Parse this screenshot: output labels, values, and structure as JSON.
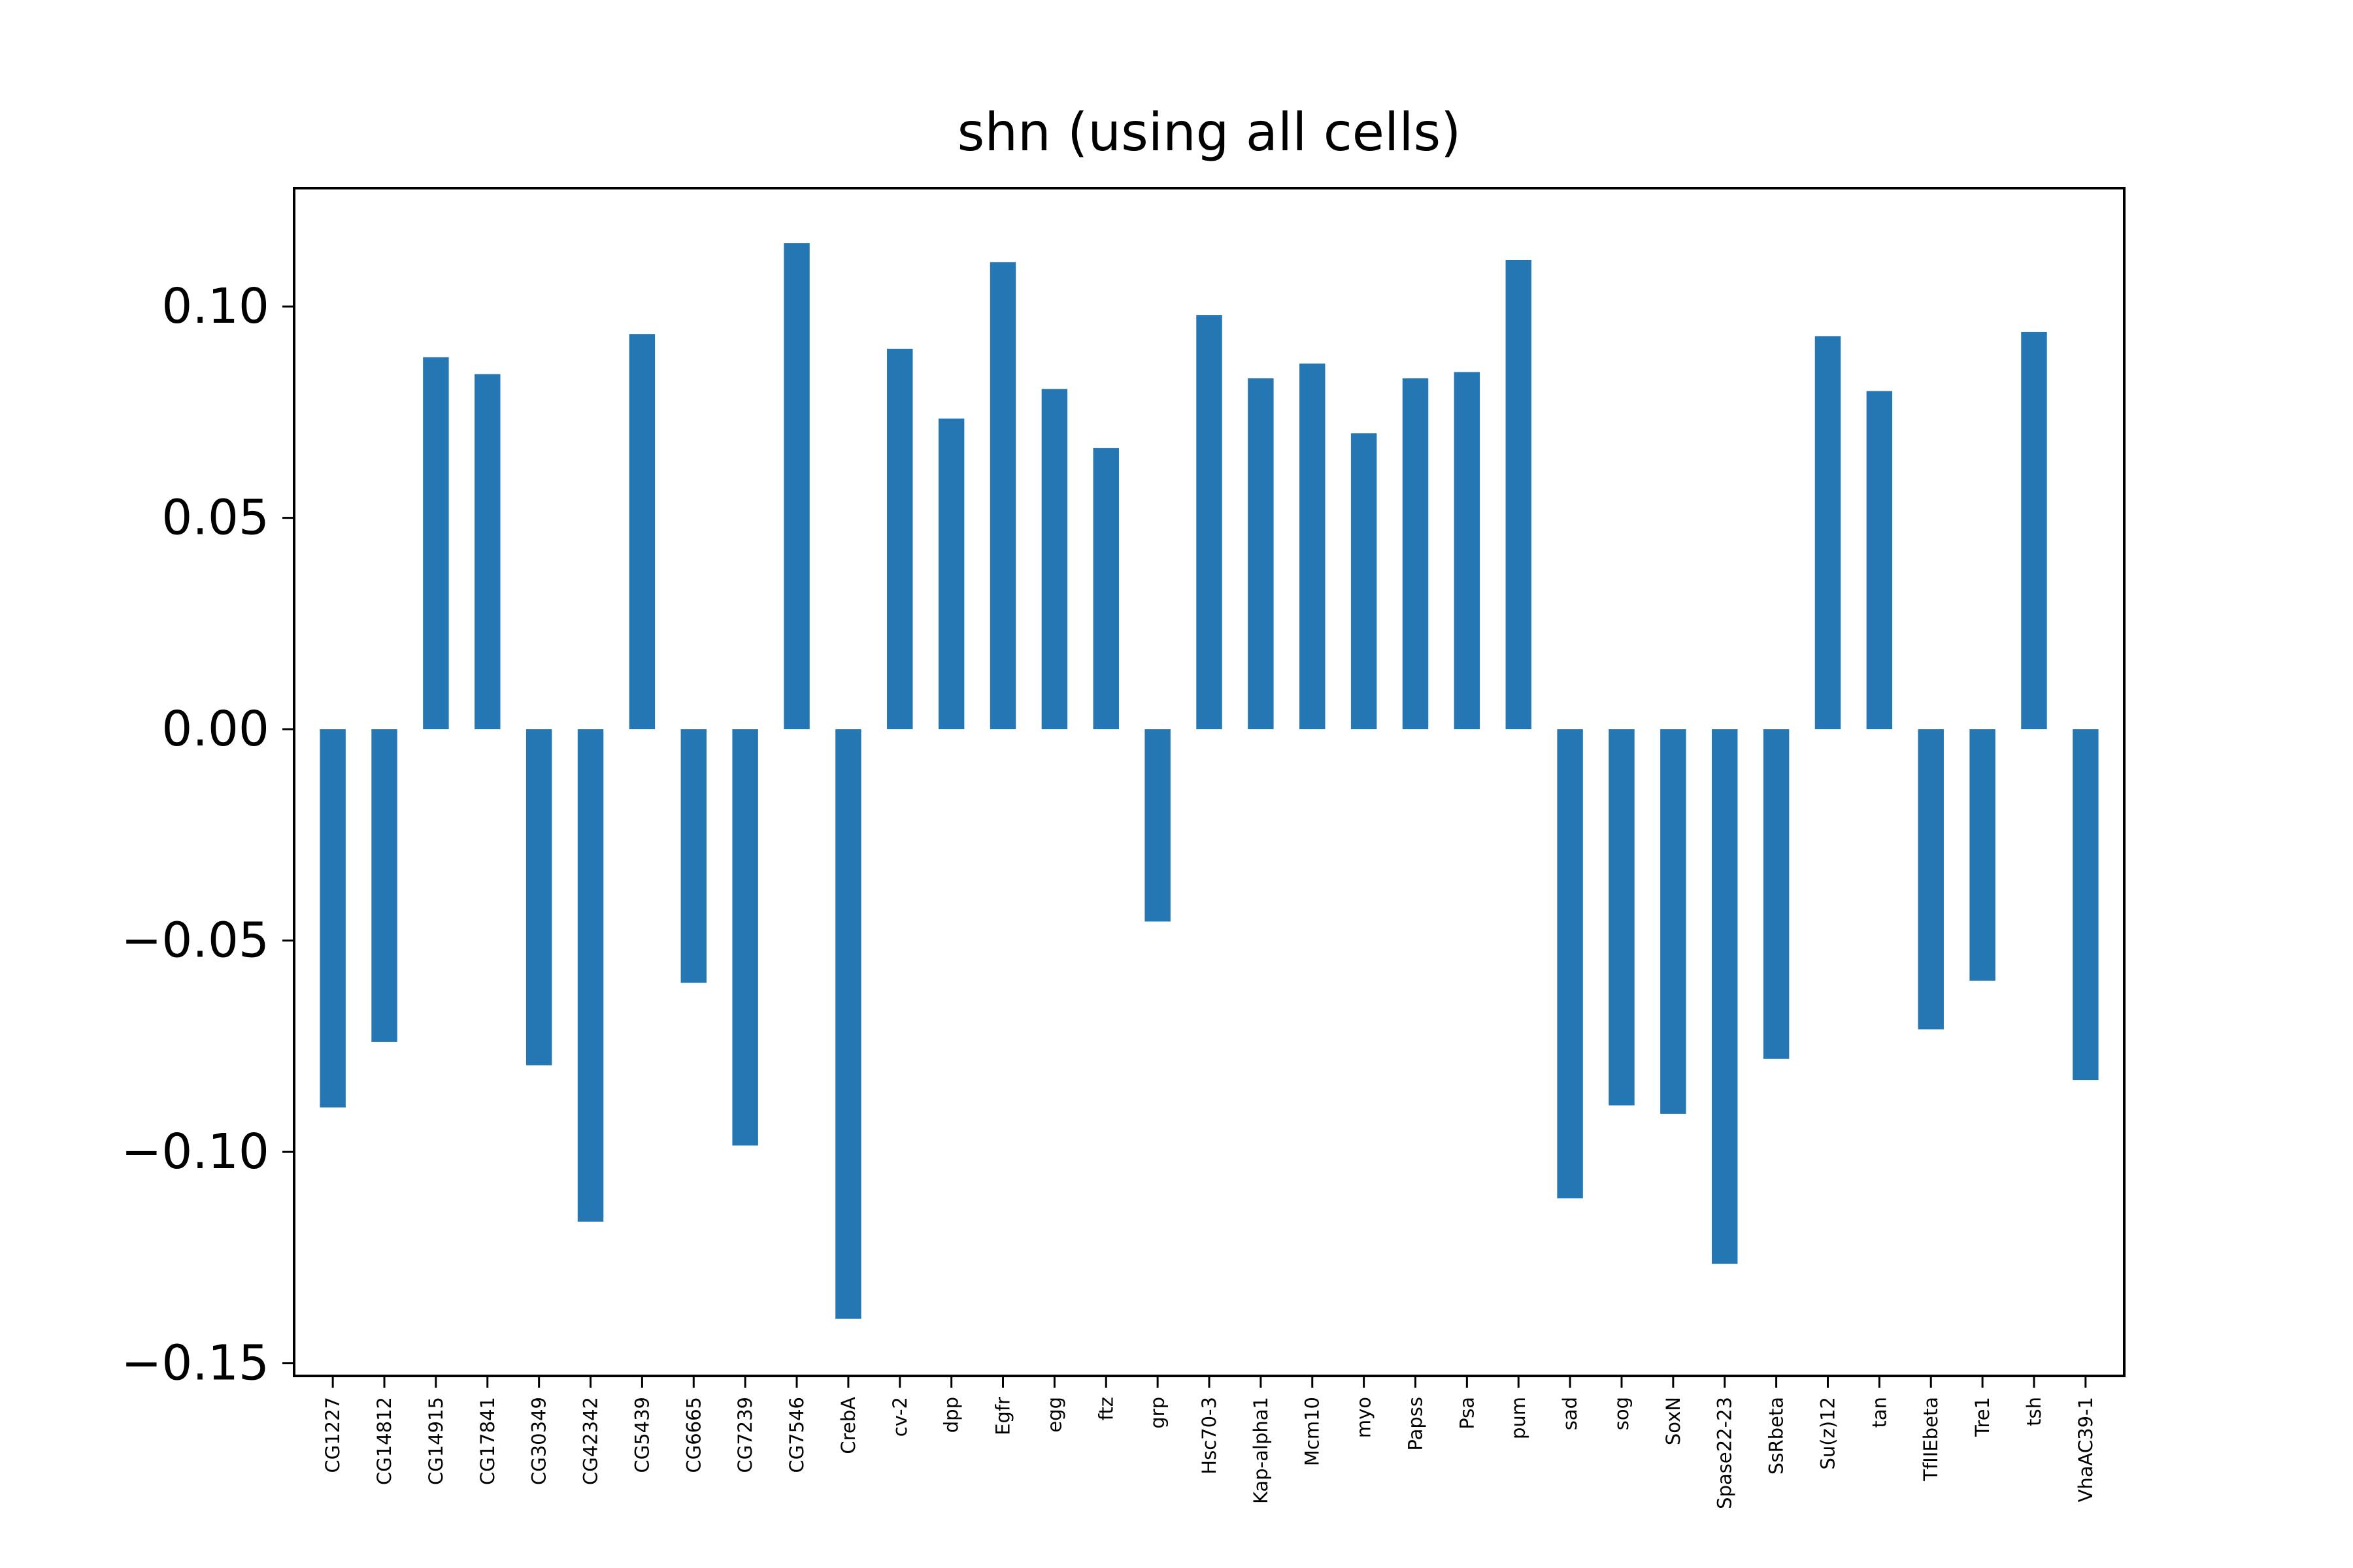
{
  "chart_data": {
    "type": "bar",
    "title": "shn (using all cells)",
    "xlabel": "",
    "ylabel": "",
    "ylim": [
      -0.153,
      0.128
    ],
    "yticks": [
      -0.15,
      -0.1,
      -0.05,
      0.0,
      0.05,
      0.1
    ],
    "ytick_labels": [
      "−0.15",
      "−0.10",
      "−0.05",
      "0.00",
      "0.05",
      "0.10"
    ],
    "grid": false,
    "legend": "none",
    "bar_color": "#2477b3",
    "categories": [
      "CG1227",
      "CG14812",
      "CG14915",
      "CG17841",
      "CG30349",
      "CG42342",
      "CG5439",
      "CG6665",
      "CG7239",
      "CG7546",
      "CrebA",
      "cv-2",
      "dpp",
      "Egfr",
      "egg",
      "ftz",
      "grp",
      "Hsc70-3",
      "Kap-alpha1",
      "Mcm10",
      "myo",
      "Papss",
      "Psa",
      "pum",
      "sad",
      "sog",
      "SoxN",
      "Spase22-23",
      "SsRbeta",
      "Su(z)12",
      "tan",
      "TfIIEbeta",
      "Tre1",
      "tsh",
      "VhaAC39-1"
    ],
    "values": [
      -0.0895,
      -0.074,
      0.088,
      0.084,
      -0.0795,
      -0.1165,
      0.0935,
      -0.06,
      -0.0985,
      0.115,
      -0.1395,
      0.09,
      0.0735,
      0.1105,
      0.0805,
      0.0665,
      -0.0455,
      0.098,
      0.083,
      0.0865,
      0.07,
      0.083,
      0.0845,
      0.111,
      -0.111,
      -0.089,
      -0.091,
      -0.1265,
      -0.078,
      0.093,
      0.08,
      -0.071,
      -0.0595,
      0.094,
      -0.083
    ]
  }
}
